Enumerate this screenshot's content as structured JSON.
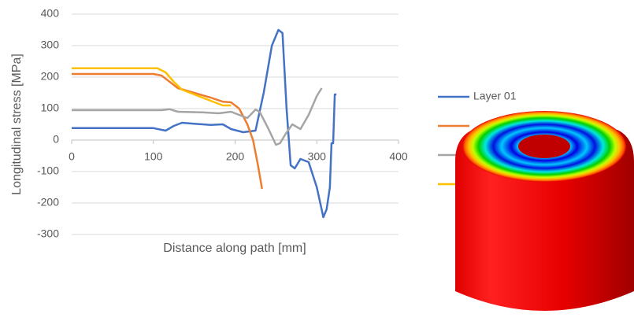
{
  "chart_data": {
    "type": "line",
    "x_label": "Distance along path [mm]",
    "y_label": "Longitudinal stress [MPa]",
    "xlim": [
      0,
      400
    ],
    "xticks": [
      0,
      100,
      200,
      300,
      400
    ],
    "ylim": [
      -300,
      400
    ],
    "yticks": [
      -300,
      -200,
      -100,
      0,
      100,
      200,
      300,
      400
    ],
    "grid": true,
    "series": [
      {
        "name": "Layer 01",
        "color": "#4472c4",
        "x": [
          0,
          50,
          100,
          115,
          125,
          135,
          150,
          170,
          185,
          195,
          210,
          225,
          235,
          245,
          253,
          258,
          263,
          268,
          273,
          280,
          290,
          300,
          308,
          312,
          316,
          318,
          320,
          322,
          324
        ],
        "values": [
          38,
          38,
          38,
          30,
          45,
          55,
          52,
          48,
          50,
          35,
          25,
          30,
          150,
          300,
          350,
          340,
          100,
          -80,
          -90,
          -60,
          -70,
          -150,
          -245,
          -220,
          -150,
          -10,
          -10,
          145,
          145
        ]
      },
      {
        "color": "#ed7d31",
        "x": [
          0,
          100,
          110,
          120,
          130,
          150,
          170,
          185,
          195,
          205,
          215,
          222,
          228,
          233
        ],
        "values": [
          210,
          210,
          205,
          185,
          165,
          150,
          135,
          122,
          120,
          100,
          50,
          0,
          -80,
          -155
        ]
      },
      {
        "color": "#a5a5a5",
        "x": [
          0,
          110,
          120,
          130,
          160,
          180,
          195,
          205,
          215,
          225,
          230,
          240,
          250,
          255,
          262,
          270,
          280,
          290,
          300,
          306
        ],
        "values": [
          95,
          95,
          98,
          90,
          88,
          85,
          90,
          80,
          70,
          97,
          90,
          40,
          -15,
          -10,
          20,
          50,
          35,
          80,
          140,
          165
        ]
      },
      {
        "color": "#ffc000",
        "x": [
          0,
          105,
          115,
          125,
          135,
          150,
          170,
          185,
          195
        ],
        "values": [
          228,
          228,
          215,
          185,
          160,
          145,
          125,
          110,
          110
        ]
      }
    ]
  }
}
